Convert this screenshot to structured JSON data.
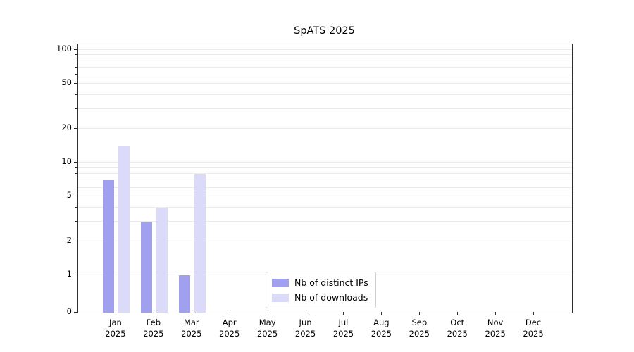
{
  "title": "SpATS 2025",
  "chart_data": {
    "type": "bar",
    "title": "SpATS 2025",
    "categories": [
      "Jan 2025",
      "Feb 2025",
      "Mar 2025",
      "Apr 2025",
      "May 2025",
      "Jun 2025",
      "Jul 2025",
      "Aug 2025",
      "Sep 2025",
      "Oct 2025",
      "Nov 2025",
      "Dec 2025"
    ],
    "series": [
      {
        "name": "Nb of distinct IPs",
        "color": "#a0a0ef",
        "values": [
          7,
          3,
          1,
          0,
          0,
          0,
          0,
          0,
          0,
          0,
          0,
          0
        ]
      },
      {
        "name": "Nb of downloads",
        "color": "#dbdbf9",
        "values": [
          14,
          4,
          8,
          0,
          0,
          0,
          0,
          0,
          0,
          0,
          0,
          0
        ]
      }
    ],
    "xlabel": "",
    "ylabel": "",
    "yscale": "symlog",
    "ylim": [
      0,
      100
    ],
    "yticks": [
      0,
      1,
      2,
      5,
      10,
      20,
      50,
      100
    ],
    "minor_gridlines": [
      3,
      4,
      6,
      7,
      8,
      9,
      30,
      40,
      60,
      70,
      80,
      90
    ],
    "grid": true,
    "legend_position": "lower center"
  }
}
